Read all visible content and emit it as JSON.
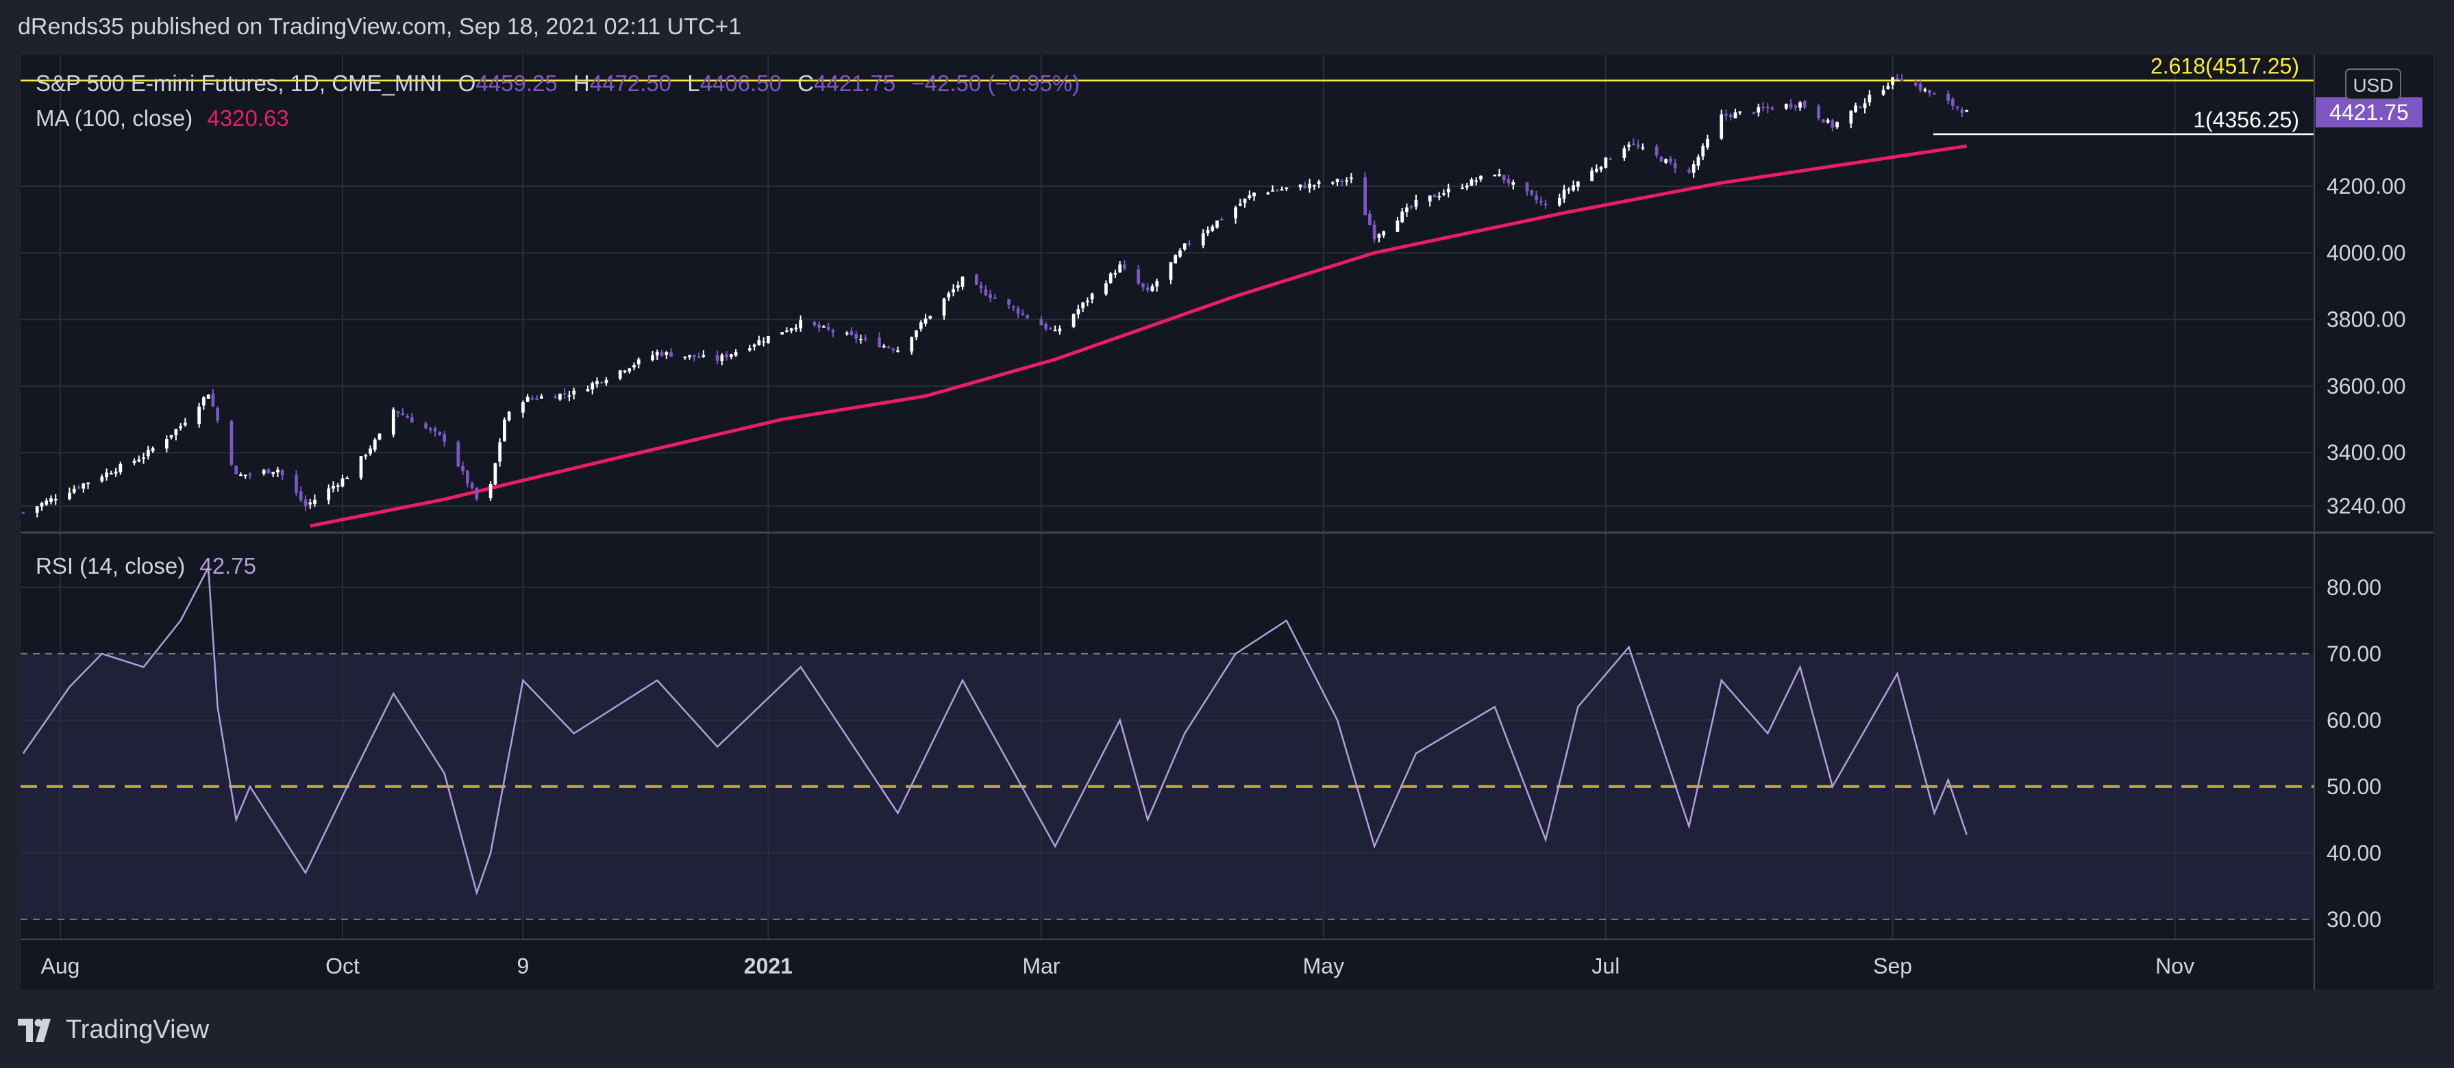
{
  "header": {
    "publish_line": "dRends35 published on TradingView.com, Sep 18, 2021 02:11 UTC+1"
  },
  "footer": {
    "brand": "TradingView"
  },
  "colors": {
    "background": "#1e222d",
    "pane": "#131722",
    "grid": "#2a2e39",
    "candle_up": "#ffffff",
    "candle_down": "#7e57c2",
    "ma": "#e91e63",
    "rsi_line": "#b39ddb",
    "rsi_band": "#2a2a4a",
    "fib_line": "#ffeb3b",
    "price_tag": "#7e57c2",
    "rsi_mid": "#b8a742"
  },
  "chart_data": [
    {
      "type": "candlestick",
      "title": "S&P 500 E-mini Futures, 1D, CME_MINI",
      "ohlc": {
        "o_label": "O",
        "o": "4459.25",
        "h_label": "H",
        "h": "4472.50",
        "l_label": "L",
        "l": "4406.50",
        "c_label": "C",
        "c": "4421.75",
        "change": "−42.50 (−0.95%)"
      },
      "indicator": {
        "label": "MA (100, close)",
        "value": "4320.63"
      },
      "currency": "USD",
      "last_price": "4421.75",
      "ylim": [
        3160,
        4570
      ],
      "y_ticks": [
        "3240.00",
        "3400.00",
        "3600.00",
        "3800.00",
        "4000.00",
        "4200.00"
      ],
      "x_ticks": [
        "Aug",
        "Oct",
        "9",
        "2021",
        "Mar",
        "May",
        "Jul",
        "Sep",
        "Nov"
      ],
      "levels": [
        {
          "label": "2.618(4517.25)",
          "value": 4517.25,
          "color": "#ffeb3b"
        },
        {
          "label": "1(4356.25)",
          "value": 4356.25,
          "color": "#ffffff"
        }
      ],
      "close_series": [
        [
          "2020-07-24",
          3220
        ],
        [
          "2020-08-05",
          3300
        ],
        [
          "2020-08-19",
          3390
        ],
        [
          "2020-08-27",
          3480
        ],
        [
          "2020-09-02",
          3580
        ],
        [
          "2020-09-08",
          3330
        ],
        [
          "2020-09-17",
          3350
        ],
        [
          "2020-09-23",
          3240
        ],
        [
          "2020-10-02",
          3330
        ],
        [
          "2020-10-09",
          3450
        ],
        [
          "2020-10-12",
          3530
        ],
        [
          "2020-10-23",
          3440
        ],
        [
          "2020-10-30",
          3260
        ],
        [
          "2020-11-02",
          3300
        ],
        [
          "2020-11-05",
          3500
        ],
        [
          "2020-11-09",
          3560
        ],
        [
          "2020-11-20",
          3580
        ],
        [
          "2020-12-08",
          3700
        ],
        [
          "2020-12-21",
          3680
        ],
        [
          "2021-01-08",
          3790
        ],
        [
          "2021-01-29",
          3710
        ],
        [
          "2021-02-12",
          3920
        ],
        [
          "2021-03-04",
          3760
        ],
        [
          "2021-03-18",
          3960
        ],
        [
          "2021-03-24",
          3880
        ],
        [
          "2021-04-01",
          4020
        ],
        [
          "2021-04-16",
          4180
        ],
        [
          "2021-05-07",
          4220
        ],
        [
          "2021-05-12",
          4050
        ],
        [
          "2021-05-21",
          4150
        ],
        [
          "2021-06-07",
          4240
        ],
        [
          "2021-06-18",
          4140
        ],
        [
          "2021-07-06",
          4330
        ],
        [
          "2021-07-19",
          4240
        ],
        [
          "2021-07-26",
          4410
        ],
        [
          "2021-08-12",
          4450
        ],
        [
          "2021-08-19",
          4380
        ],
        [
          "2021-09-02",
          4530
        ],
        [
          "2021-09-17",
          4421.75
        ]
      ],
      "ma_series": [
        [
          "2020-09-24",
          3180
        ],
        [
          "2020-10-23",
          3260
        ],
        [
          "2020-11-25",
          3370
        ],
        [
          "2021-01-04",
          3500
        ],
        [
          "2021-02-04",
          3570
        ],
        [
          "2021-03-04",
          3680
        ],
        [
          "2021-04-12",
          3870
        ],
        [
          "2021-05-12",
          4000
        ],
        [
          "2021-06-22",
          4120
        ],
        [
          "2021-07-26",
          4210
        ],
        [
          "2021-09-17",
          4320.63
        ]
      ]
    },
    {
      "type": "line",
      "title": "RSI (14, close)",
      "last_value": "42.75",
      "ylim": [
        27,
        87
      ],
      "y_ticks": [
        "30.00",
        "40.00",
        "50.00",
        "60.00",
        "70.00",
        "80.00"
      ],
      "band": [
        30,
        70
      ],
      "mid": 50,
      "series": [
        [
          "2020-07-24",
          55
        ],
        [
          "2020-08-03",
          65
        ],
        [
          "2020-08-10",
          70
        ],
        [
          "2020-08-19",
          68
        ],
        [
          "2020-08-27",
          75
        ],
        [
          "2020-09-02",
          83
        ],
        [
          "2020-09-04",
          62
        ],
        [
          "2020-09-08",
          45
        ],
        [
          "2020-09-11",
          50
        ],
        [
          "2020-09-23",
          37
        ],
        [
          "2020-10-02",
          50
        ],
        [
          "2020-10-12",
          64
        ],
        [
          "2020-10-23",
          52
        ],
        [
          "2020-10-30",
          34
        ],
        [
          "2020-11-02",
          40
        ],
        [
          "2020-11-09",
          66
        ],
        [
          "2020-11-20",
          58
        ],
        [
          "2020-12-08",
          66
        ],
        [
          "2020-12-21",
          56
        ],
        [
          "2021-01-08",
          68
        ],
        [
          "2021-01-29",
          46
        ],
        [
          "2021-02-12",
          66
        ],
        [
          "2021-03-04",
          41
        ],
        [
          "2021-03-18",
          60
        ],
        [
          "2021-03-24",
          45
        ],
        [
          "2021-04-01",
          58
        ],
        [
          "2021-04-12",
          70
        ],
        [
          "2021-04-23",
          75
        ],
        [
          "2021-05-04",
          60
        ],
        [
          "2021-05-12",
          41
        ],
        [
          "2021-05-21",
          55
        ],
        [
          "2021-06-07",
          62
        ],
        [
          "2021-06-18",
          42
        ],
        [
          "2021-06-25",
          62
        ],
        [
          "2021-07-06",
          71
        ],
        [
          "2021-07-19",
          44
        ],
        [
          "2021-07-26",
          66
        ],
        [
          "2021-08-05",
          58
        ],
        [
          "2021-08-12",
          68
        ],
        [
          "2021-08-19",
          50
        ],
        [
          "2021-09-02",
          67
        ],
        [
          "2021-09-10",
          46
        ],
        [
          "2021-09-13",
          51
        ],
        [
          "2021-09-17",
          42.75
        ]
      ]
    }
  ]
}
